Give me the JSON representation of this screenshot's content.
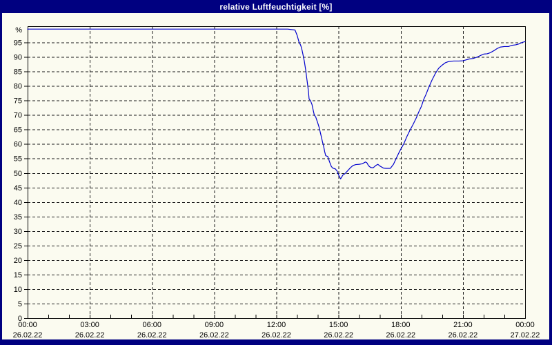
{
  "window": {
    "title": "relative Luftfeuchtigkeit [%]"
  },
  "colors": {
    "titlebar_bg": "#000080",
    "titlebar_text": "#FFFFFF",
    "paper_bg": "#FBFBF0",
    "grid": "#1A1A1A",
    "axis": "#000000",
    "line": "#0000CD",
    "label": "#000000"
  },
  "chart_data": {
    "type": "line",
    "title": "relative Luftfeuchtigkeit [%]",
    "ylabel": "%",
    "y_unit_label": "%",
    "grid": "dashed",
    "legend": "none",
    "y_axis": {
      "min": 0,
      "max_render": 100.6,
      "tick_step": 5,
      "ticks": [
        0,
        5,
        10,
        15,
        20,
        25,
        30,
        35,
        40,
        45,
        50,
        55,
        60,
        65,
        70,
        75,
        80,
        85,
        90,
        95
      ]
    },
    "x_axis": {
      "min_hour": 0,
      "max_hour": 24,
      "minor_tick_every_hours": 1,
      "gridline_hours": [
        3,
        6,
        9,
        12,
        15,
        18,
        21
      ],
      "labels": [
        {
          "hour": 0,
          "time": "00:00",
          "date": "26.02.22"
        },
        {
          "hour": 3,
          "time": "03:00",
          "date": "26.02.22"
        },
        {
          "hour": 6,
          "time": "06:00",
          "date": "26.02.22"
        },
        {
          "hour": 9,
          "time": "09:00",
          "date": "26.02.22"
        },
        {
          "hour": 12,
          "time": "12:00",
          "date": "26.02.22"
        },
        {
          "hour": 15,
          "time": "15:00",
          "date": "26.02.22"
        },
        {
          "hour": 18,
          "time": "18:00",
          "date": "26.02.22"
        },
        {
          "hour": 21,
          "time": "21:00",
          "date": "26.02.22"
        },
        {
          "hour": 24,
          "time": "00:00",
          "date": "27.02.22"
        }
      ]
    },
    "series": [
      {
        "name": "relative Luftfeuchtigkeit",
        "unit": "%",
        "points": [
          [
            0,
            99.6
          ],
          [
            1,
            99.6
          ],
          [
            2,
            99.6
          ],
          [
            3,
            99.6
          ],
          [
            4,
            99.6
          ],
          [
            5,
            99.6
          ],
          [
            6,
            99.6
          ],
          [
            7,
            99.6
          ],
          [
            8,
            99.6
          ],
          [
            9,
            99.6
          ],
          [
            10,
            99.6
          ],
          [
            11,
            99.6
          ],
          [
            12,
            99.6
          ],
          [
            12.55,
            99.6
          ],
          [
            12.9,
            99.3
          ],
          [
            13.0,
            97.5
          ],
          [
            13.1,
            95.0
          ],
          [
            13.17,
            94.1
          ],
          [
            13.22,
            93.0
          ],
          [
            13.28,
            91.0
          ],
          [
            13.35,
            88.5
          ],
          [
            13.42,
            85.3
          ],
          [
            13.47,
            82.5
          ],
          [
            13.52,
            79.8
          ],
          [
            13.55,
            78.0
          ],
          [
            13.58,
            75.5
          ],
          [
            13.65,
            74.9
          ],
          [
            13.72,
            73.6
          ],
          [
            13.78,
            71.6
          ],
          [
            13.83,
            70.0
          ],
          [
            13.9,
            69.3
          ],
          [
            14.0,
            67.2
          ],
          [
            14.07,
            65.6
          ],
          [
            14.12,
            64.0
          ],
          [
            14.17,
            62.5
          ],
          [
            14.22,
            60.9
          ],
          [
            14.28,
            59.3
          ],
          [
            14.33,
            57.4
          ],
          [
            14.38,
            56.0
          ],
          [
            14.48,
            55.7
          ],
          [
            14.57,
            53.8
          ],
          [
            14.65,
            52.3
          ],
          [
            14.72,
            51.7
          ],
          [
            14.85,
            51.4
          ],
          [
            14.93,
            50.7
          ],
          [
            15.0,
            49.4
          ],
          [
            15.07,
            48.4
          ],
          [
            15.1,
            48.0
          ],
          [
            15.15,
            48.6
          ],
          [
            15.22,
            49.4
          ],
          [
            15.3,
            49.7
          ],
          [
            15.43,
            50.7
          ],
          [
            15.57,
            51.8
          ],
          [
            15.7,
            52.6
          ],
          [
            15.83,
            52.9
          ],
          [
            16.0,
            53.0
          ],
          [
            16.15,
            53.2
          ],
          [
            16.3,
            53.8
          ],
          [
            16.37,
            53.5
          ],
          [
            16.45,
            52.5
          ],
          [
            16.55,
            51.9
          ],
          [
            16.67,
            51.8
          ],
          [
            16.8,
            52.6
          ],
          [
            16.9,
            53.0
          ],
          [
            17.0,
            52.4
          ],
          [
            17.17,
            51.7
          ],
          [
            17.3,
            51.6
          ],
          [
            17.5,
            51.6
          ],
          [
            17.65,
            53.0
          ],
          [
            17.78,
            55.0
          ],
          [
            17.9,
            56.8
          ],
          [
            18.0,
            58.2
          ],
          [
            18.15,
            60.1
          ],
          [
            18.3,
            62.6
          ],
          [
            18.45,
            64.8
          ],
          [
            18.6,
            66.8
          ],
          [
            18.75,
            69.0
          ],
          [
            18.88,
            71.2
          ],
          [
            19.0,
            73.0
          ],
          [
            19.1,
            75.2
          ],
          [
            19.22,
            77.1
          ],
          [
            19.33,
            79.1
          ],
          [
            19.5,
            81.9
          ],
          [
            19.67,
            84.3
          ],
          [
            19.83,
            86.1
          ],
          [
            20.0,
            87.2
          ],
          [
            20.15,
            88.0
          ],
          [
            20.3,
            88.4
          ],
          [
            20.55,
            88.6
          ],
          [
            20.8,
            88.6
          ],
          [
            21.0,
            88.7
          ],
          [
            21.15,
            89.0
          ],
          [
            21.3,
            89.3
          ],
          [
            21.5,
            89.5
          ],
          [
            21.67,
            89.9
          ],
          [
            21.85,
            90.5
          ],
          [
            22.0,
            91.0
          ],
          [
            22.17,
            91.1
          ],
          [
            22.33,
            91.5
          ],
          [
            22.5,
            92.2
          ],
          [
            22.65,
            92.9
          ],
          [
            22.8,
            93.4
          ],
          [
            23.0,
            93.6
          ],
          [
            23.2,
            93.6
          ],
          [
            23.35,
            94.0
          ],
          [
            23.55,
            94.2
          ],
          [
            23.7,
            94.5
          ],
          [
            23.85,
            95.0
          ],
          [
            24.0,
            95.3
          ]
        ]
      }
    ]
  }
}
